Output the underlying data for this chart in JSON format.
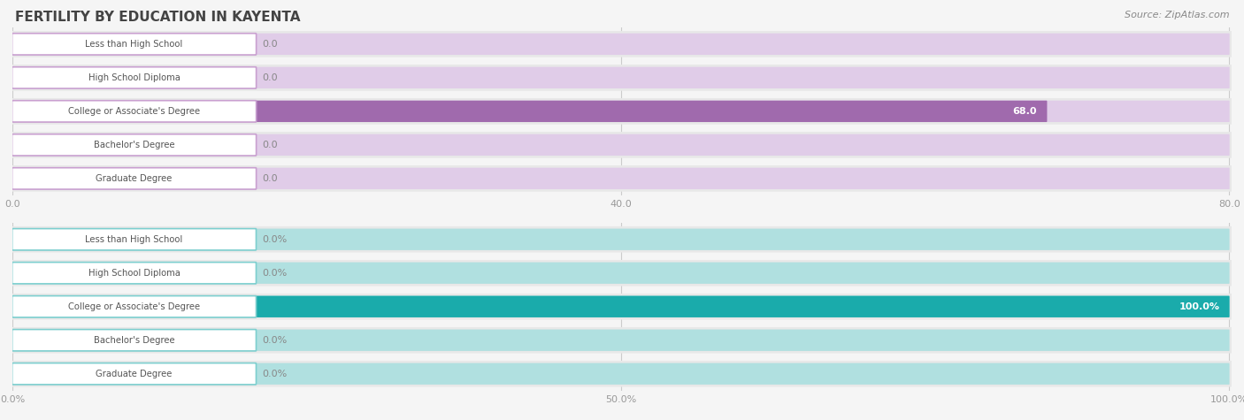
{
  "title": "FERTILITY BY EDUCATION IN KAYENTA",
  "source": "Source: ZipAtlas.com",
  "top_chart": {
    "categories": [
      "Less than High School",
      "High School Diploma",
      "College or Associate's Degree",
      "Bachelor's Degree",
      "Graduate Degree"
    ],
    "values": [
      0.0,
      0.0,
      68.0,
      0.0,
      0.0
    ],
    "max_value": 80.0,
    "xticks": [
      0.0,
      40.0,
      80.0
    ],
    "bar_color": "#c9a0d0",
    "bar_color_highlight": "#a06aad",
    "label_value_color": "#888888",
    "bar_bg_color": "#e0cce8"
  },
  "bottom_chart": {
    "categories": [
      "Less than High School",
      "High School Diploma",
      "College or Associate's Degree",
      "Bachelor's Degree",
      "Graduate Degree"
    ],
    "values": [
      0.0,
      0.0,
      100.0,
      0.0,
      0.0
    ],
    "max_value": 100.0,
    "xticks": [
      0.0,
      50.0,
      100.0
    ],
    "bar_color": "#7dcfcf",
    "bar_color_highlight": "#1aabab",
    "label_value_color": "#888888",
    "bar_bg_color": "#b0e0e0"
  },
  "background_color": "#f5f5f5",
  "bar_row_bg": "#e8e8e8",
  "label_bg": "#ffffff",
  "label_text_color": "#555555",
  "title_color": "#444444",
  "axis_tick_color": "#999999",
  "bar_height": 0.58
}
